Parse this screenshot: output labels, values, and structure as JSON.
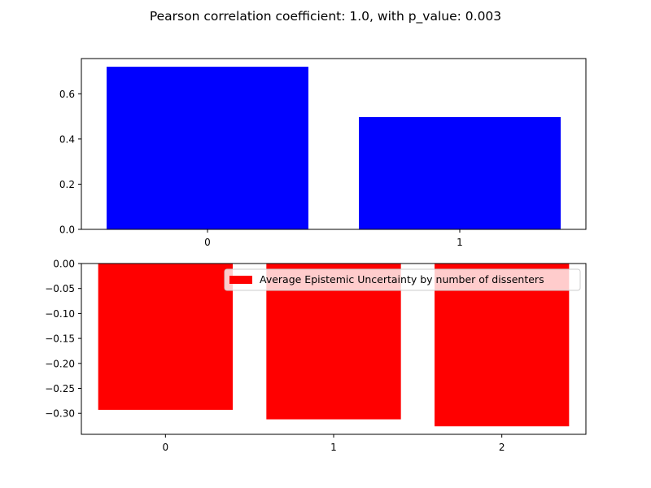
{
  "figure": {
    "suptitle": "Pearson correlation coefficient: 1.0, with p_value: 0.003"
  },
  "chart_data": [
    {
      "type": "bar",
      "title": "",
      "xlabel": "",
      "ylabel": "",
      "categories": [
        "0",
        "1"
      ],
      "series": [
        {
          "values": [
            0.72,
            0.497
          ],
          "color": "#0000ff"
        }
      ],
      "ylim": [
        0,
        0.756
      ],
      "yticks": [
        0.0,
        0.2,
        0.4,
        0.6
      ],
      "ytick_labels": [
        "0.0",
        "0.2",
        "0.4",
        "0.6"
      ],
      "grid": false
    },
    {
      "type": "bar",
      "title": "",
      "xlabel": "",
      "ylabel": "",
      "categories": [
        "0",
        "1",
        "2"
      ],
      "series": [
        {
          "name": "Average Epistemic Uncertainty by number of dissenters",
          "values": [
            -0.293,
            -0.312,
            -0.326
          ],
          "color": "#ff0000"
        }
      ],
      "ylim": [
        -0.342,
        0.0
      ],
      "yticks": [
        0.0,
        -0.05,
        -0.1,
        -0.15,
        -0.2,
        -0.25,
        -0.3
      ],
      "ytick_labels": [
        "0.00",
        "−0.05",
        "−0.10",
        "−0.15",
        "−0.20",
        "−0.25",
        "−0.30"
      ],
      "legend": {
        "placement": "top-right"
      },
      "grid": false
    }
  ]
}
